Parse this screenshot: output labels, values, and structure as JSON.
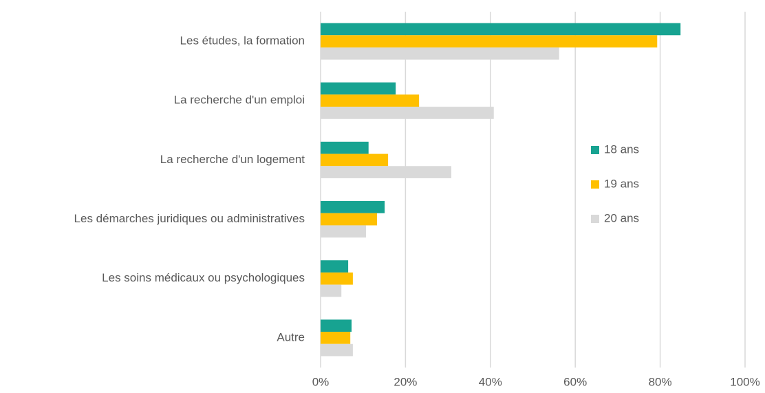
{
  "chart_data": {
    "type": "hbar",
    "categories": [
      "Les études, la formation",
      "La recherche d'un emploi",
      "La recherche d'un logement",
      "Les démarches juridiques ou administratives",
      "Les soins médicaux ou psychologiques",
      "Autre"
    ],
    "series": [
      {
        "name": "18 ans",
        "color": "#17a391",
        "values": [
          84.8,
          17.7,
          11.3,
          15.1,
          6.5,
          7.3
        ]
      },
      {
        "name": "19 ans",
        "color": "#ffc000",
        "values": [
          79.3,
          23.2,
          15.9,
          13.3,
          7.6,
          7.0
        ]
      },
      {
        "name": "20 ans",
        "color": "#d9d9d9",
        "values": [
          56.2,
          40.8,
          30.8,
          10.7,
          4.9,
          7.6
        ]
      }
    ],
    "xlim": [
      0,
      100
    ],
    "xticks": [
      {
        "value": 0,
        "label": "0%"
      },
      {
        "value": 20,
        "label": "20%"
      },
      {
        "value": 40,
        "label": "40%"
      },
      {
        "value": 60,
        "label": "60%"
      },
      {
        "value": 80,
        "label": "80%"
      },
      {
        "value": 100,
        "label": "100%"
      }
    ],
    "grid": true,
    "legend": "right"
  }
}
